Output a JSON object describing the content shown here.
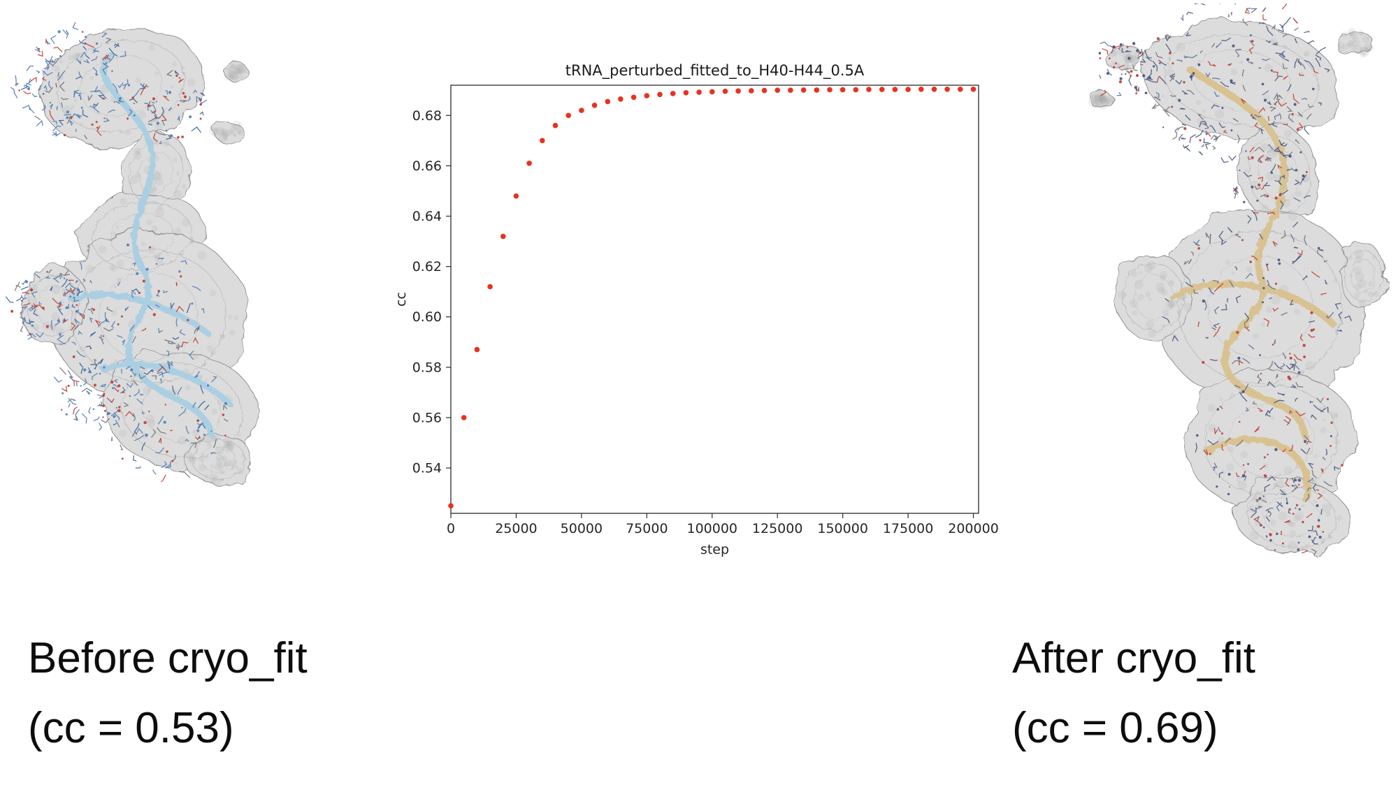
{
  "captions": {
    "before": {
      "line1": "Before cryo_fit",
      "line2": "(cc = 0.53)"
    },
    "after": {
      "line1": "After cryo_fit",
      "line2": "(cc = 0.69)"
    }
  },
  "chart_data": {
    "type": "scatter",
    "title": "tRNA_perturbed_fitted_to_H40-H44_0.5A",
    "xlabel": "step",
    "ylabel": "cc",
    "xlim": [
      0,
      202000
    ],
    "ylim": [
      0.522,
      0.692
    ],
    "xticks": [
      0,
      25000,
      50000,
      75000,
      100000,
      125000,
      150000,
      175000,
      200000
    ],
    "yticks": [
      0.54,
      0.56,
      0.58,
      0.6,
      0.62,
      0.64,
      0.66,
      0.68
    ],
    "grid": false,
    "legend": "none",
    "marker_color": "#e8311f",
    "x": [
      0,
      5000,
      10000,
      15000,
      20000,
      25000,
      30000,
      35000,
      40000,
      45000,
      50000,
      55000,
      60000,
      65000,
      70000,
      75000,
      80000,
      85000,
      90000,
      95000,
      100000,
      105000,
      110000,
      115000,
      120000,
      125000,
      130000,
      135000,
      140000,
      145000,
      150000,
      155000,
      160000,
      165000,
      170000,
      175000,
      180000,
      185000,
      190000,
      195000,
      200000
    ],
    "y": [
      0.525,
      0.56,
      0.587,
      0.612,
      0.632,
      0.648,
      0.661,
      0.67,
      0.676,
      0.68,
      0.682,
      0.684,
      0.6855,
      0.6865,
      0.6872,
      0.6878,
      0.6883,
      0.6887,
      0.689,
      0.6892,
      0.6894,
      0.6896,
      0.6897,
      0.6898,
      0.6899,
      0.69,
      0.69,
      0.6901,
      0.6901,
      0.6902,
      0.6902,
      0.6902,
      0.6903,
      0.6903,
      0.6903,
      0.6903,
      0.6904,
      0.6904,
      0.6904,
      0.6904,
      0.6904
    ]
  },
  "molecules": {
    "before": {
      "surface_color": "#dcdcdc",
      "ribbon_color": "#a9cfe3",
      "stick_color": "#4c7ab2",
      "atom_red": "#c0392b"
    },
    "after": {
      "surface_color": "#dcdcdc",
      "ribbon_color": "#d9c18f",
      "stick_color": "#44517c",
      "atom_red": "#c0392b"
    }
  }
}
